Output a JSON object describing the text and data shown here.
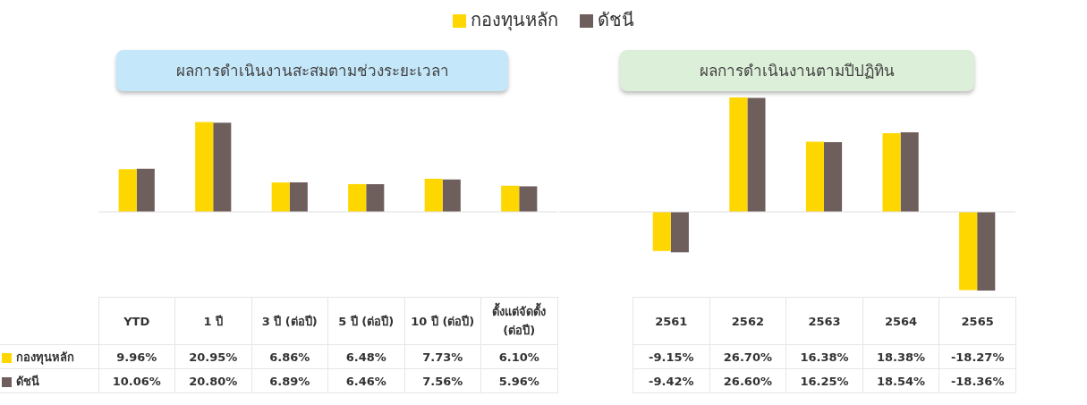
{
  "chart_data": [
    {
      "type": "bar",
      "title": "ผลการดำเนินงานสะสมตามช่วงระยะเวลา",
      "legend": "top",
      "tick_labels": false,
      "categories": [
        "YTD",
        "1 ปี",
        "3 ปี (ต่อปี)",
        "5 ปี (ต่อปี)",
        "10 ปี (ต่อปี)",
        "ตั้งแต่จัดตั้ง (ต่อปี)"
      ],
      "series": [
        {
          "name": "กองทุนหลัก",
          "color": "#ffd700",
          "values": [
            9.96,
            20.95,
            6.86,
            6.48,
            7.73,
            6.1
          ],
          "value_labels": [
            "9.96%",
            "20.95%",
            "6.86%",
            "6.48%",
            "7.73%",
            "6.10%"
          ]
        },
        {
          "name": "ดัชนี",
          "color": "#6e5f5c",
          "values": [
            10.06,
            20.8,
            6.89,
            6.46,
            7.56,
            5.96
          ],
          "value_labels": [
            "10.06%",
            "20.80%",
            "6.89%",
            "6.46%",
            "7.56%",
            "5.96%"
          ]
        }
      ]
    },
    {
      "type": "bar",
      "title": "ผลการดำเนินงานตามปีปฏิทิน",
      "tick_labels": false,
      "categories": [
        "2561",
        "2562",
        "2563",
        "2564",
        "2565"
      ],
      "series": [
        {
          "color": "#ffd700",
          "values": [
            -9.15,
            26.7,
            16.38,
            18.38,
            -18.27
          ],
          "value_labels": [
            "-9.15%",
            "26.70%",
            "16.38%",
            "18.38%",
            "-18.27%"
          ]
        },
        {
          "color": "#6e5f5c",
          "values": [
            -9.42,
            26.6,
            16.25,
            18.54,
            -18.36
          ],
          "value_labels": [
            "-9.42%",
            "26.60%",
            "16.25%",
            "18.54%",
            "-18.36%"
          ]
        }
      ]
    }
  ]
}
